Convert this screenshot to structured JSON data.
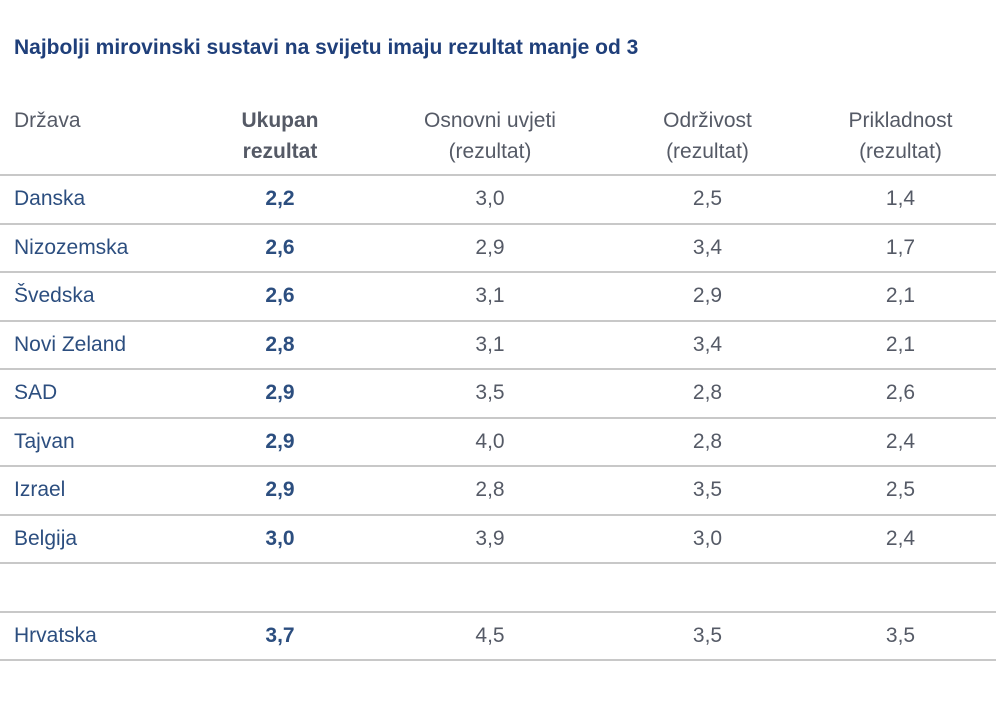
{
  "title": "Najbolji mirovinski sustavi na svijetu imaju rezultat manje od 3",
  "headers": {
    "country": "Država",
    "total_line1": "Ukupan",
    "total_line2": "rezultat",
    "basic_line1": "Osnovni uvjeti",
    "basic_line2": "(rezultat)",
    "sustainability_line1": "Održivost",
    "sustainability_line2": "(rezultat)",
    "adequacy_line1": "Prikladnost",
    "adequacy_line2": "(rezultat)"
  },
  "rows": [
    {
      "country": "Danska",
      "total": "2,2",
      "basic": "3,0",
      "sustainability": "2,5",
      "adequacy": "1,4"
    },
    {
      "country": "Nizozemska",
      "total": "2,6",
      "basic": "2,9",
      "sustainability": "3,4",
      "adequacy": "1,7"
    },
    {
      "country": "Švedska",
      "total": "2,6",
      "basic": "3,1",
      "sustainability": "2,9",
      "adequacy": "2,1"
    },
    {
      "country": "Novi Zeland",
      "total": "2,8",
      "basic": "3,1",
      "sustainability": "3,4",
      "adequacy": "2,1"
    },
    {
      "country": "SAD",
      "total": "2,9",
      "basic": "3,5",
      "sustainability": "2,8",
      "adequacy": "2,6"
    },
    {
      "country": "Tajvan",
      "total": "2,9",
      "basic": "4,0",
      "sustainability": "2,8",
      "adequacy": "2,4"
    },
    {
      "country": "Izrael",
      "total": "2,9",
      "basic": "2,8",
      "sustainability": "3,5",
      "adequacy": "2,5"
    },
    {
      "country": "Belgija",
      "total": "3,0",
      "basic": "3,9",
      "sustainability": "3,0",
      "adequacy": "2,4"
    }
  ],
  "highlight_row": {
    "country": "Hrvatska",
    "total": "3,7",
    "basic": "4,5",
    "sustainability": "3,5",
    "adequacy": "3,5"
  },
  "colors": {
    "title": "#1f3f7a",
    "country_text": "#2c4e7f",
    "value_text": "#555a66",
    "rule": "#c8c8c8"
  }
}
